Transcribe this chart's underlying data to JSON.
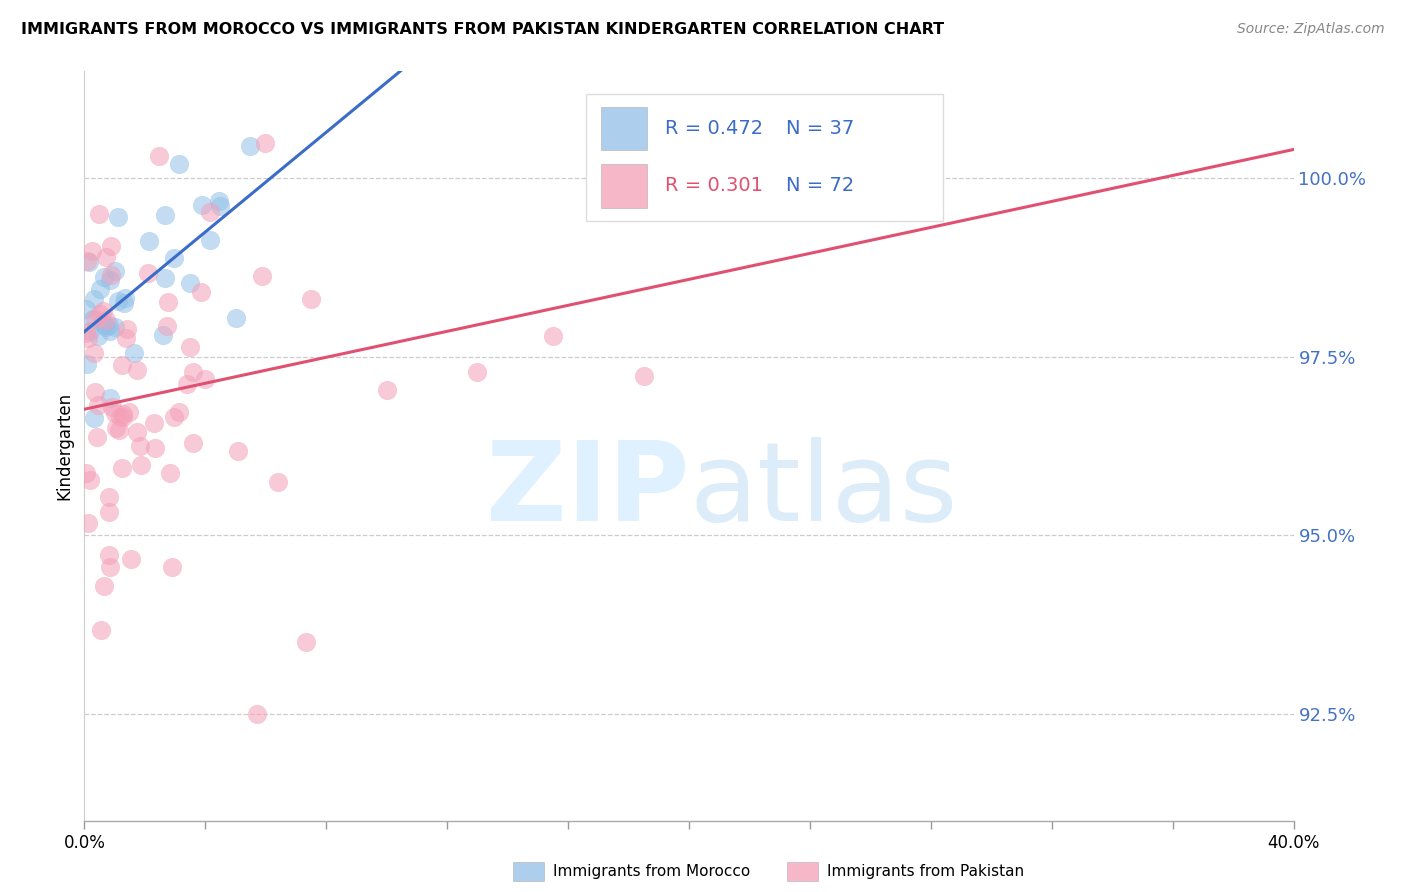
{
  "title": "IMMIGRANTS FROM MOROCCO VS IMMIGRANTS FROM PAKISTAN KINDERGARTEN CORRELATION CHART",
  "source": "Source: ZipAtlas.com",
  "ylabel": "Kindergarten",
  "R_morocco": 0.472,
  "N_morocco": 37,
  "R_pakistan": 0.301,
  "N_pakistan": 72,
  "color_morocco": "#92C0E8",
  "color_pakistan": "#F4A0B8",
  "line_color_morocco": "#3A6CC8",
  "line_color_pakistan": "#E05070",
  "legend_morocco": "Immigrants from Morocco",
  "legend_pakistan": "Immigrants from Pakistan",
  "yticks": [
    92.5,
    95.0,
    97.5,
    100.0
  ],
  "xmin": 0.0,
  "xmax": 40.0,
  "ymin": 91.0,
  "ymax": 101.5,
  "legend_blue_text": "R = 0.472   N = 37",
  "legend_pink_text": "R = 0.301   N = 72"
}
